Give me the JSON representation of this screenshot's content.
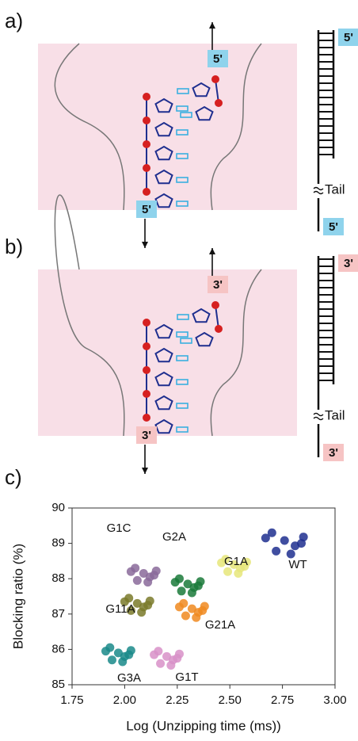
{
  "panels": [
    {
      "label": "a)",
      "strand_top": "5'",
      "strand_bottom": "5'",
      "ladder_top": "5'",
      "tail": "Tail",
      "ladder_bottom": "5'"
    },
    {
      "label": "b)",
      "strand_top": "3'",
      "strand_bottom": "3'",
      "ladder_top": "3'",
      "tail": "Tail",
      "ladder_bottom": "3'"
    },
    {
      "label": "c)"
    }
  ],
  "chart_data": {
    "type": "scatter",
    "xlabel": "Log (Unzipping time (ms))",
    "ylabel": "Blocking ratio (%)",
    "xlim": [
      1.75,
      3.0
    ],
    "xticks": [
      {
        "value": 1.75,
        "label": "1.75"
      },
      {
        "value": 2.0,
        "label": "2.00"
      },
      {
        "value": 2.25,
        "label": "2.25"
      },
      {
        "value": 2.5,
        "label": "2.50"
      },
      {
        "value": 2.75,
        "label": "2.75"
      },
      {
        "value": 3.0,
        "label": "3.00"
      }
    ],
    "ylim": [
      85,
      90
    ],
    "yticks": [
      85,
      86,
      87,
      88,
      89,
      90
    ],
    "grid": false,
    "series": [
      {
        "name": "WT",
        "color": "#1f2f8f",
        "x": [
          2.67,
          2.72,
          2.76,
          2.81,
          2.85,
          2.7,
          2.79,
          2.84
        ],
        "values": [
          89.15,
          88.78,
          89.08,
          88.93,
          89.18,
          89.3,
          88.7,
          89.0
        ]
      },
      {
        "name": "G1A",
        "color": "#e6e67a",
        "x": [
          2.46,
          2.49,
          2.52,
          2.55,
          2.58,
          2.48,
          2.54,
          2.57
        ],
        "values": [
          88.45,
          88.2,
          88.4,
          88.3,
          88.47,
          88.55,
          88.15,
          88.35
        ]
      },
      {
        "name": "G2A",
        "color": "#1a7a3a",
        "x": [
          2.24,
          2.27,
          2.3,
          2.33,
          2.36,
          2.26,
          2.32,
          2.35
        ],
        "values": [
          87.9,
          87.65,
          87.85,
          87.75,
          87.92,
          88.0,
          87.6,
          87.8
        ]
      },
      {
        "name": "G1C",
        "color": "#8a6a9a",
        "x": [
          2.03,
          2.06,
          2.09,
          2.12,
          2.15,
          2.05,
          2.11,
          2.14
        ],
        "values": [
          88.2,
          87.95,
          88.15,
          88.05,
          88.22,
          88.3,
          87.9,
          88.1
        ]
      },
      {
        "name": "G11A",
        "color": "#7a7a2a",
        "x": [
          2.0,
          2.03,
          2.06,
          2.09,
          2.12,
          2.02,
          2.08,
          2.11
        ],
        "values": [
          87.35,
          87.1,
          87.3,
          87.2,
          87.37,
          87.45,
          87.05,
          87.25
        ]
      },
      {
        "name": "G21A",
        "color": "#f08a20",
        "x": [
          2.26,
          2.29,
          2.32,
          2.35,
          2.38,
          2.28,
          2.34,
          2.37
        ],
        "values": [
          87.2,
          86.95,
          87.15,
          87.05,
          87.22,
          87.3,
          86.9,
          87.1
        ]
      },
      {
        "name": "G3A",
        "color": "#1a8a8a",
        "x": [
          1.91,
          1.94,
          1.97,
          2.0,
          2.03,
          1.93,
          1.99,
          2.02
        ],
        "values": [
          85.95,
          85.7,
          85.9,
          85.8,
          85.97,
          86.05,
          85.65,
          85.85
        ]
      },
      {
        "name": "G1T",
        "color": "#d890c8",
        "x": [
          2.14,
          2.17,
          2.2,
          2.23,
          2.26,
          2.16,
          2.22,
          2.25
        ],
        "values": [
          85.85,
          85.6,
          85.8,
          85.7,
          85.87,
          85.95,
          85.55,
          85.75
        ]
      }
    ]
  }
}
